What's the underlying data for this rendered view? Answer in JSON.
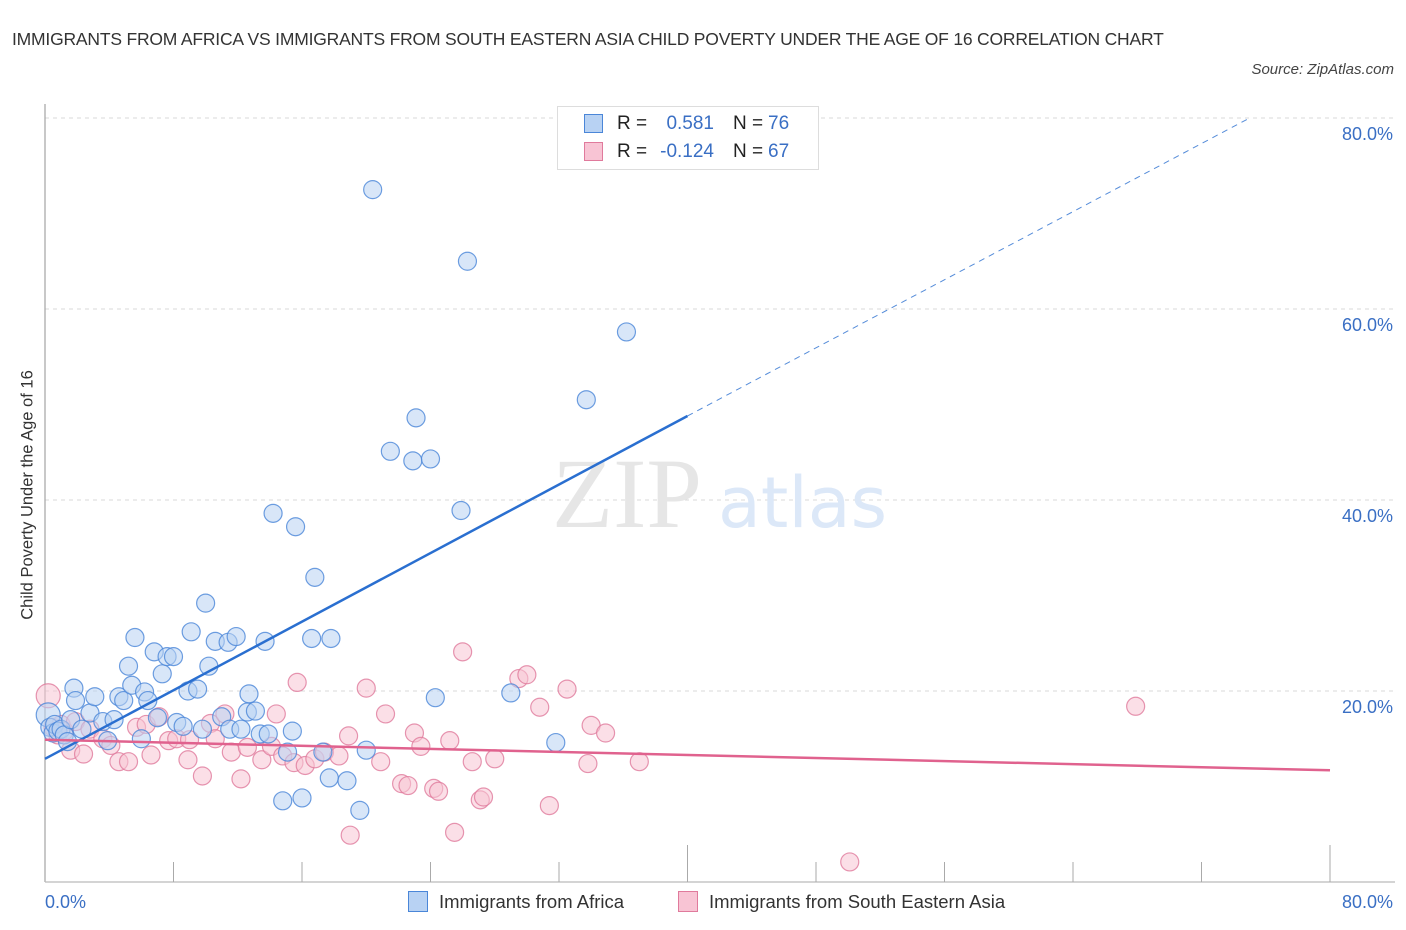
{
  "header": {
    "title": "IMMIGRANTS FROM AFRICA VS IMMIGRANTS FROM SOUTH EASTERN ASIA CHILD POVERTY UNDER THE AGE OF 16 CORRELATION CHART",
    "source": "Source: ZipAtlas.com"
  },
  "watermark": {
    "zip": "ZIP",
    "atlas": "atlas"
  },
  "legend": {
    "rows": [
      {
        "r_label": "R =",
        "r_value": "0.581",
        "n_label": "N =",
        "n_value": "76"
      },
      {
        "r_label": "R =",
        "r_value": "-0.124",
        "n_label": "N =",
        "n_value": "67"
      }
    ]
  },
  "bottom_legend": {
    "items": [
      {
        "label": "Immigrants from Africa"
      },
      {
        "label": "Immigrants from South Eastern Asia"
      }
    ]
  },
  "colors": {
    "africa_fill": "#b8d2f3",
    "africa_stroke": "#4a86d8",
    "africa_line": "#2a6fd0",
    "sea_fill": "#f8c4d4",
    "sea_stroke": "#e07a9c",
    "sea_line": "#e0628e",
    "tick_text": "#3a6fc4",
    "grid": "#d8d8d8"
  },
  "chart_data": {
    "type": "scatter",
    "title": "IMMIGRANTS FROM AFRICA VS IMMIGRANTS FROM SOUTH EASTERN ASIA CHILD POVERTY UNDER THE AGE OF 16 CORRELATION CHART",
    "xlabel": "",
    "ylabel": "Child Poverty Under the Age of 16",
    "xlim": [
      0,
      80
    ],
    "ylim": [
      0,
      80
    ],
    "x_tick_labels": [
      "0.0%",
      "80.0%"
    ],
    "y_tick_labels": [
      "20.0%",
      "40.0%",
      "60.0%",
      "80.0%"
    ],
    "y_ticks": [
      20,
      40,
      60,
      80
    ],
    "x_minor_ticks": [
      8,
      16,
      24,
      32,
      40,
      48,
      56,
      64,
      72,
      80
    ],
    "grid": true,
    "legend_position": "top-center",
    "series": [
      {
        "name": "Immigrants from Africa",
        "R": 0.581,
        "N": 76,
        "trend": {
          "x0": 0,
          "y0": 12.9,
          "x1": 40,
          "y1": 48.8,
          "dashed_to_x": 75,
          "dashed_to_y": 80
        },
        "points": [
          [
            0.2,
            17.5
          ],
          [
            0.3,
            16.2
          ],
          [
            0.5,
            15.6
          ],
          [
            0.6,
            16.5
          ],
          [
            0.8,
            15.8
          ],
          [
            1.0,
            16.0
          ],
          [
            1.2,
            15.4
          ],
          [
            1.4,
            14.7
          ],
          [
            1.6,
            17.0
          ],
          [
            1.8,
            20.3
          ],
          [
            1.9,
            19.0
          ],
          [
            2.3,
            16.0
          ],
          [
            2.8,
            17.7
          ],
          [
            3.1,
            19.4
          ],
          [
            3.6,
            16.8
          ],
          [
            3.9,
            14.8
          ],
          [
            4.3,
            17.0
          ],
          [
            4.6,
            19.4
          ],
          [
            4.9,
            19.0
          ],
          [
            5.2,
            22.6
          ],
          [
            5.4,
            20.6
          ],
          [
            5.6,
            25.6
          ],
          [
            6.2,
            19.9
          ],
          [
            6.4,
            19.0
          ],
          [
            6.8,
            24.1
          ],
          [
            7.0,
            17.2
          ],
          [
            7.3,
            21.8
          ],
          [
            7.6,
            23.6
          ],
          [
            8.0,
            23.6
          ],
          [
            8.2,
            16.7
          ],
          [
            8.6,
            16.3
          ],
          [
            8.9,
            20.0
          ],
          [
            9.1,
            26.2
          ],
          [
            9.5,
            20.2
          ],
          [
            10.0,
            29.2
          ],
          [
            10.2,
            22.6
          ],
          [
            10.6,
            25.2
          ],
          [
            11.0,
            17.3
          ],
          [
            11.4,
            25.1
          ],
          [
            11.9,
            25.7
          ],
          [
            11.5,
            16.0
          ],
          [
            12.2,
            16.0
          ],
          [
            12.6,
            17.8
          ],
          [
            12.7,
            19.7
          ],
          [
            13.1,
            17.9
          ],
          [
            13.4,
            15.5
          ],
          [
            13.7,
            25.2
          ],
          [
            13.9,
            15.5
          ],
          [
            14.2,
            38.6
          ],
          [
            14.8,
            8.5
          ],
          [
            15.1,
            13.6
          ],
          [
            15.4,
            15.8
          ],
          [
            15.6,
            37.2
          ],
          [
            16.0,
            8.8
          ],
          [
            16.6,
            25.5
          ],
          [
            16.8,
            31.9
          ],
          [
            17.3,
            13.6
          ],
          [
            17.7,
            10.9
          ],
          [
            17.8,
            25.5
          ],
          [
            18.8,
            10.6
          ],
          [
            19.6,
            7.5
          ],
          [
            20.4,
            72.5
          ],
          [
            21.5,
            45.1
          ],
          [
            22.9,
            44.1
          ],
          [
            23.1,
            48.6
          ],
          [
            24.0,
            44.3
          ],
          [
            24.3,
            19.3
          ],
          [
            25.9,
            38.9
          ],
          [
            26.3,
            65.0
          ],
          [
            29.0,
            19.8
          ],
          [
            33.7,
            50.5
          ],
          [
            36.2,
            57.6
          ],
          [
            31.8,
            14.6
          ],
          [
            20.0,
            13.8
          ],
          [
            9.8,
            16.0
          ],
          [
            6.0,
            15.0
          ]
        ]
      },
      {
        "name": "Immigrants from South Eastern Asia",
        "R": -0.124,
        "N": 67,
        "trend": {
          "x0": 0,
          "y0": 14.9,
          "x1": 80,
          "y1": 11.7
        },
        "points": [
          [
            0.2,
            19.5
          ],
          [
            0.5,
            16.2
          ],
          [
            0.8,
            15.4
          ],
          [
            1.0,
            16.5
          ],
          [
            1.2,
            15.8
          ],
          [
            1.6,
            13.8
          ],
          [
            1.9,
            16.8
          ],
          [
            2.4,
            13.4
          ],
          [
            2.8,
            16.0
          ],
          [
            3.6,
            15.0
          ],
          [
            4.1,
            14.3
          ],
          [
            4.6,
            12.6
          ],
          [
            5.2,
            12.6
          ],
          [
            5.7,
            16.2
          ],
          [
            6.3,
            16.5
          ],
          [
            6.6,
            13.3
          ],
          [
            7.1,
            17.3
          ],
          [
            7.7,
            14.8
          ],
          [
            8.2,
            15.0
          ],
          [
            8.9,
            12.8
          ],
          [
            9.0,
            14.9
          ],
          [
            9.8,
            11.1
          ],
          [
            10.3,
            16.6
          ],
          [
            10.6,
            15.0
          ],
          [
            11.2,
            17.6
          ],
          [
            11.6,
            13.6
          ],
          [
            12.2,
            10.8
          ],
          [
            12.6,
            14.1
          ],
          [
            13.5,
            12.8
          ],
          [
            14.1,
            14.2
          ],
          [
            14.4,
            17.6
          ],
          [
            14.8,
            13.2
          ],
          [
            15.5,
            12.5
          ],
          [
            15.7,
            20.9
          ],
          [
            16.2,
            12.2
          ],
          [
            16.8,
            12.9
          ],
          [
            17.4,
            13.6
          ],
          [
            18.3,
            13.2
          ],
          [
            18.9,
            15.3
          ],
          [
            19.0,
            4.9
          ],
          [
            20.0,
            20.3
          ],
          [
            20.9,
            12.6
          ],
          [
            21.2,
            17.6
          ],
          [
            22.2,
            10.3
          ],
          [
            22.6,
            10.1
          ],
          [
            23.0,
            15.6
          ],
          [
            23.4,
            14.2
          ],
          [
            24.2,
            9.8
          ],
          [
            24.5,
            9.5
          ],
          [
            25.2,
            14.8
          ],
          [
            25.5,
            5.2
          ],
          [
            26.0,
            24.1
          ],
          [
            26.6,
            12.6
          ],
          [
            27.1,
            8.6
          ],
          [
            27.3,
            8.9
          ],
          [
            28.0,
            12.9
          ],
          [
            29.5,
            21.3
          ],
          [
            30.0,
            21.7
          ],
          [
            30.8,
            18.3
          ],
          [
            31.4,
            8.0
          ],
          [
            32.5,
            20.2
          ],
          [
            33.8,
            12.4
          ],
          [
            34.0,
            16.4
          ],
          [
            34.9,
            15.6
          ],
          [
            37.0,
            12.6
          ],
          [
            50.1,
            2.1
          ],
          [
            67.9,
            18.4
          ]
        ]
      }
    ]
  }
}
